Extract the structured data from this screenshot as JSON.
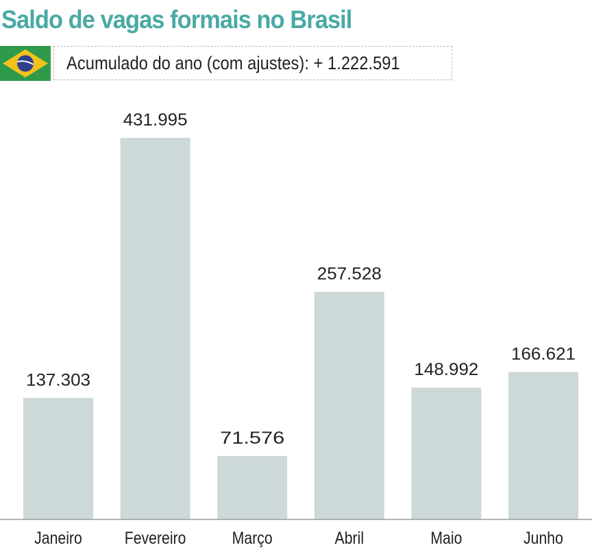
{
  "title": "Saldo de vagas formais no Brasil",
  "subtitle": "Acumulado do ano (com ajustes): + 1.222.591",
  "flag_icon": "brazil-flag-icon",
  "colors": {
    "title": "#4aa9a5",
    "bar": "#cdd8d8",
    "axis": "#999999",
    "text": "#222222"
  },
  "chart_data": {
    "type": "bar",
    "title": "Saldo de vagas formais no Brasil",
    "xlabel": "",
    "ylabel": "",
    "categories": [
      "Janeiro",
      "Fevereiro",
      "Março",
      "Abril",
      "Maio",
      "Junho"
    ],
    "values": [
      137303,
      431995,
      71576,
      257528,
      148992,
      166621
    ],
    "labels": [
      "137.303",
      "431.995",
      "71.576",
      "257.528",
      "148.992",
      "166.621"
    ],
    "ylim": [
      0,
      431995
    ],
    "grid": false
  }
}
